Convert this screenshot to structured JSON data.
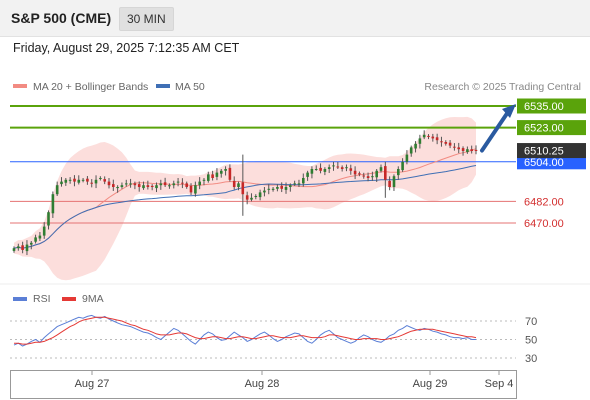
{
  "header": {
    "symbol": "S&P 500 (CME)",
    "timeframe": "30 MIN"
  },
  "datetime": "Friday, August 29, 2025 7:12:35 AM CET",
  "legend": {
    "bollinger_label": "MA 20 + Bollinger Bands",
    "ma50_label": "MA 50",
    "credit": "Research © 2025 Trading Central",
    "rsi_label": "RSI",
    "rsi_ma_label": "9MA"
  },
  "colors": {
    "up": "#2f7d32",
    "down": "#c62828",
    "ma20": "#f28b82",
    "band_fill": "#fbd3d0",
    "ma50": "#3f6fb5",
    "target": "#5aa30b",
    "support": "#e57373",
    "current": "#2962ff",
    "price_tag": "#333333",
    "arrow": "#2a5aa0",
    "rsi": "#5b7fd6",
    "rsi_ma": "#e53935"
  },
  "chart_data": [
    {
      "type": "candlestick",
      "title": "S&P 500 (CME) 30 MIN",
      "x_ticks": [
        "Aug 27",
        "Aug 28",
        "Aug 29",
        "Sep 4"
      ],
      "y_range": [
        6460,
        6540
      ],
      "current_price": 6510.25,
      "levels": [
        {
          "value": 6535.0,
          "label": "6535.00",
          "kind": "target"
        },
        {
          "value": 6523.0,
          "label": "6523.00",
          "kind": "target"
        },
        {
          "value": 6504.0,
          "label": "6504.00",
          "kind": "pivot"
        },
        {
          "value": 6482.0,
          "label": "6482.00",
          "kind": "support"
        },
        {
          "value": 6470.0,
          "label": "6470.00",
          "kind": "support"
        }
      ],
      "current_label": "6510.25",
      "close_series": [
        6456,
        6457,
        6455,
        6458,
        6459,
        6462,
        6463,
        6468,
        6476,
        6486,
        6491,
        6493,
        6494,
        6494,
        6493,
        6494,
        6494,
        6493,
        6492,
        6494,
        6495,
        6493,
        6491,
        6490,
        6490,
        6491,
        6492,
        6492,
        6491,
        6490,
        6491,
        6490,
        6490,
        6491,
        6492,
        6491,
        6491,
        6492,
        6493,
        6492,
        6490,
        6487,
        6491,
        6493,
        6494,
        6497,
        6495,
        6498,
        6499,
        6500,
        6494,
        6490,
        6492,
        6486,
        6483,
        6484,
        6485,
        6487,
        6488,
        6489,
        6489,
        6490,
        6489,
        6490,
        6491,
        6492,
        6492,
        6495,
        6498,
        6500,
        6500,
        6499,
        6500,
        6501,
        6502,
        6501,
        6500,
        6501,
        6499,
        6497,
        6497,
        6496,
        6495,
        6496,
        6499,
        6501,
        6494,
        6490,
        6496,
        6500,
        6504,
        6508,
        6512,
        6514,
        6517,
        6519,
        6518,
        6517,
        6516,
        6515,
        6514,
        6513,
        6512,
        6511,
        6510,
        6511,
        6510,
        6510
      ],
      "series": [
        {
          "name": "MA 20 + Bollinger Bands",
          "kind": "ma20"
        },
        {
          "name": "MA 50",
          "kind": "ma50"
        }
      ],
      "forecast_arrow": {
        "from": 6510.25,
        "to": 6535.0
      }
    },
    {
      "type": "line",
      "title": "RSI",
      "y_ticks": [
        70,
        50,
        30
      ],
      "y_range": [
        20,
        80
      ],
      "series": [
        {
          "name": "RSI",
          "values": [
            44,
            46,
            43,
            45,
            48,
            50,
            47,
            52,
            56,
            60,
            64,
            66,
            68,
            70,
            72,
            74,
            73,
            75,
            76,
            74,
            73,
            75,
            72,
            70,
            68,
            66,
            65,
            64,
            62,
            60,
            58,
            57,
            55,
            52,
            50,
            54,
            58,
            62,
            60,
            56,
            52,
            48,
            45,
            50,
            55,
            58,
            56,
            52,
            49,
            50,
            54,
            58,
            55,
            52,
            48,
            50,
            53,
            56,
            58,
            55,
            51,
            48,
            50,
            53,
            55,
            57,
            56,
            52,
            48,
            46,
            50,
            55,
            58,
            60,
            56,
            52,
            50,
            48,
            46,
            48,
            52,
            55,
            53,
            50,
            48,
            47,
            50,
            54,
            56,
            60,
            62,
            65,
            63,
            61,
            60,
            62,
            61,
            59,
            58,
            56,
            55,
            53,
            52,
            52,
            51,
            52,
            50,
            50
          ]
        },
        {
          "name": "9MA",
          "values": [
            46,
            46,
            45,
            45,
            46,
            47,
            47,
            48,
            50,
            52,
            55,
            58,
            61,
            64,
            66,
            69,
            71,
            72,
            73,
            74,
            74,
            74,
            73,
            72,
            71,
            70,
            68,
            66,
            65,
            63,
            61,
            60,
            58,
            56,
            55,
            55,
            55,
            56,
            57,
            57,
            56,
            54,
            52,
            51,
            51,
            52,
            53,
            53,
            52,
            51,
            51,
            52,
            53,
            53,
            52,
            51,
            51,
            52,
            53,
            54,
            54,
            53,
            52,
            52,
            52,
            53,
            54,
            54,
            53,
            52,
            52,
            52,
            53,
            55,
            55,
            54,
            53,
            52,
            51,
            50,
            50,
            51,
            51,
            51,
            51,
            50,
            50,
            51,
            52,
            53,
            55,
            57,
            59,
            60,
            61,
            61,
            61,
            61,
            60,
            59,
            58,
            57,
            56,
            55,
            54,
            53,
            53,
            52
          ]
        }
      ]
    }
  ]
}
